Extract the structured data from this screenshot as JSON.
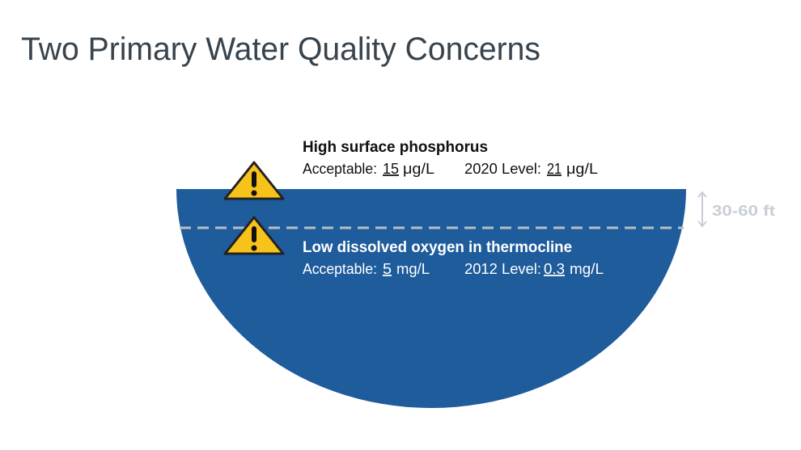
{
  "title": "Two Primary Water Quality Concerns",
  "concerns": [
    {
      "heading": "High surface phosphorus",
      "acceptable_label": "Acceptable:",
      "acceptable_value": "15",
      "acceptable_unit": "μg/L",
      "level_label": "2020 Level:",
      "level_value": "21",
      "level_unit": "μg/L"
    },
    {
      "heading": "Low dissolved oxygen in thermocline",
      "acceptable_label": "Acceptable:",
      "acceptable_value": "5",
      "acceptable_unit": "mg/L",
      "level_label": "2012 Level:",
      "level_value": "0.3",
      "level_unit": "mg/L"
    }
  ],
  "depth_label": "30-60 ft"
}
